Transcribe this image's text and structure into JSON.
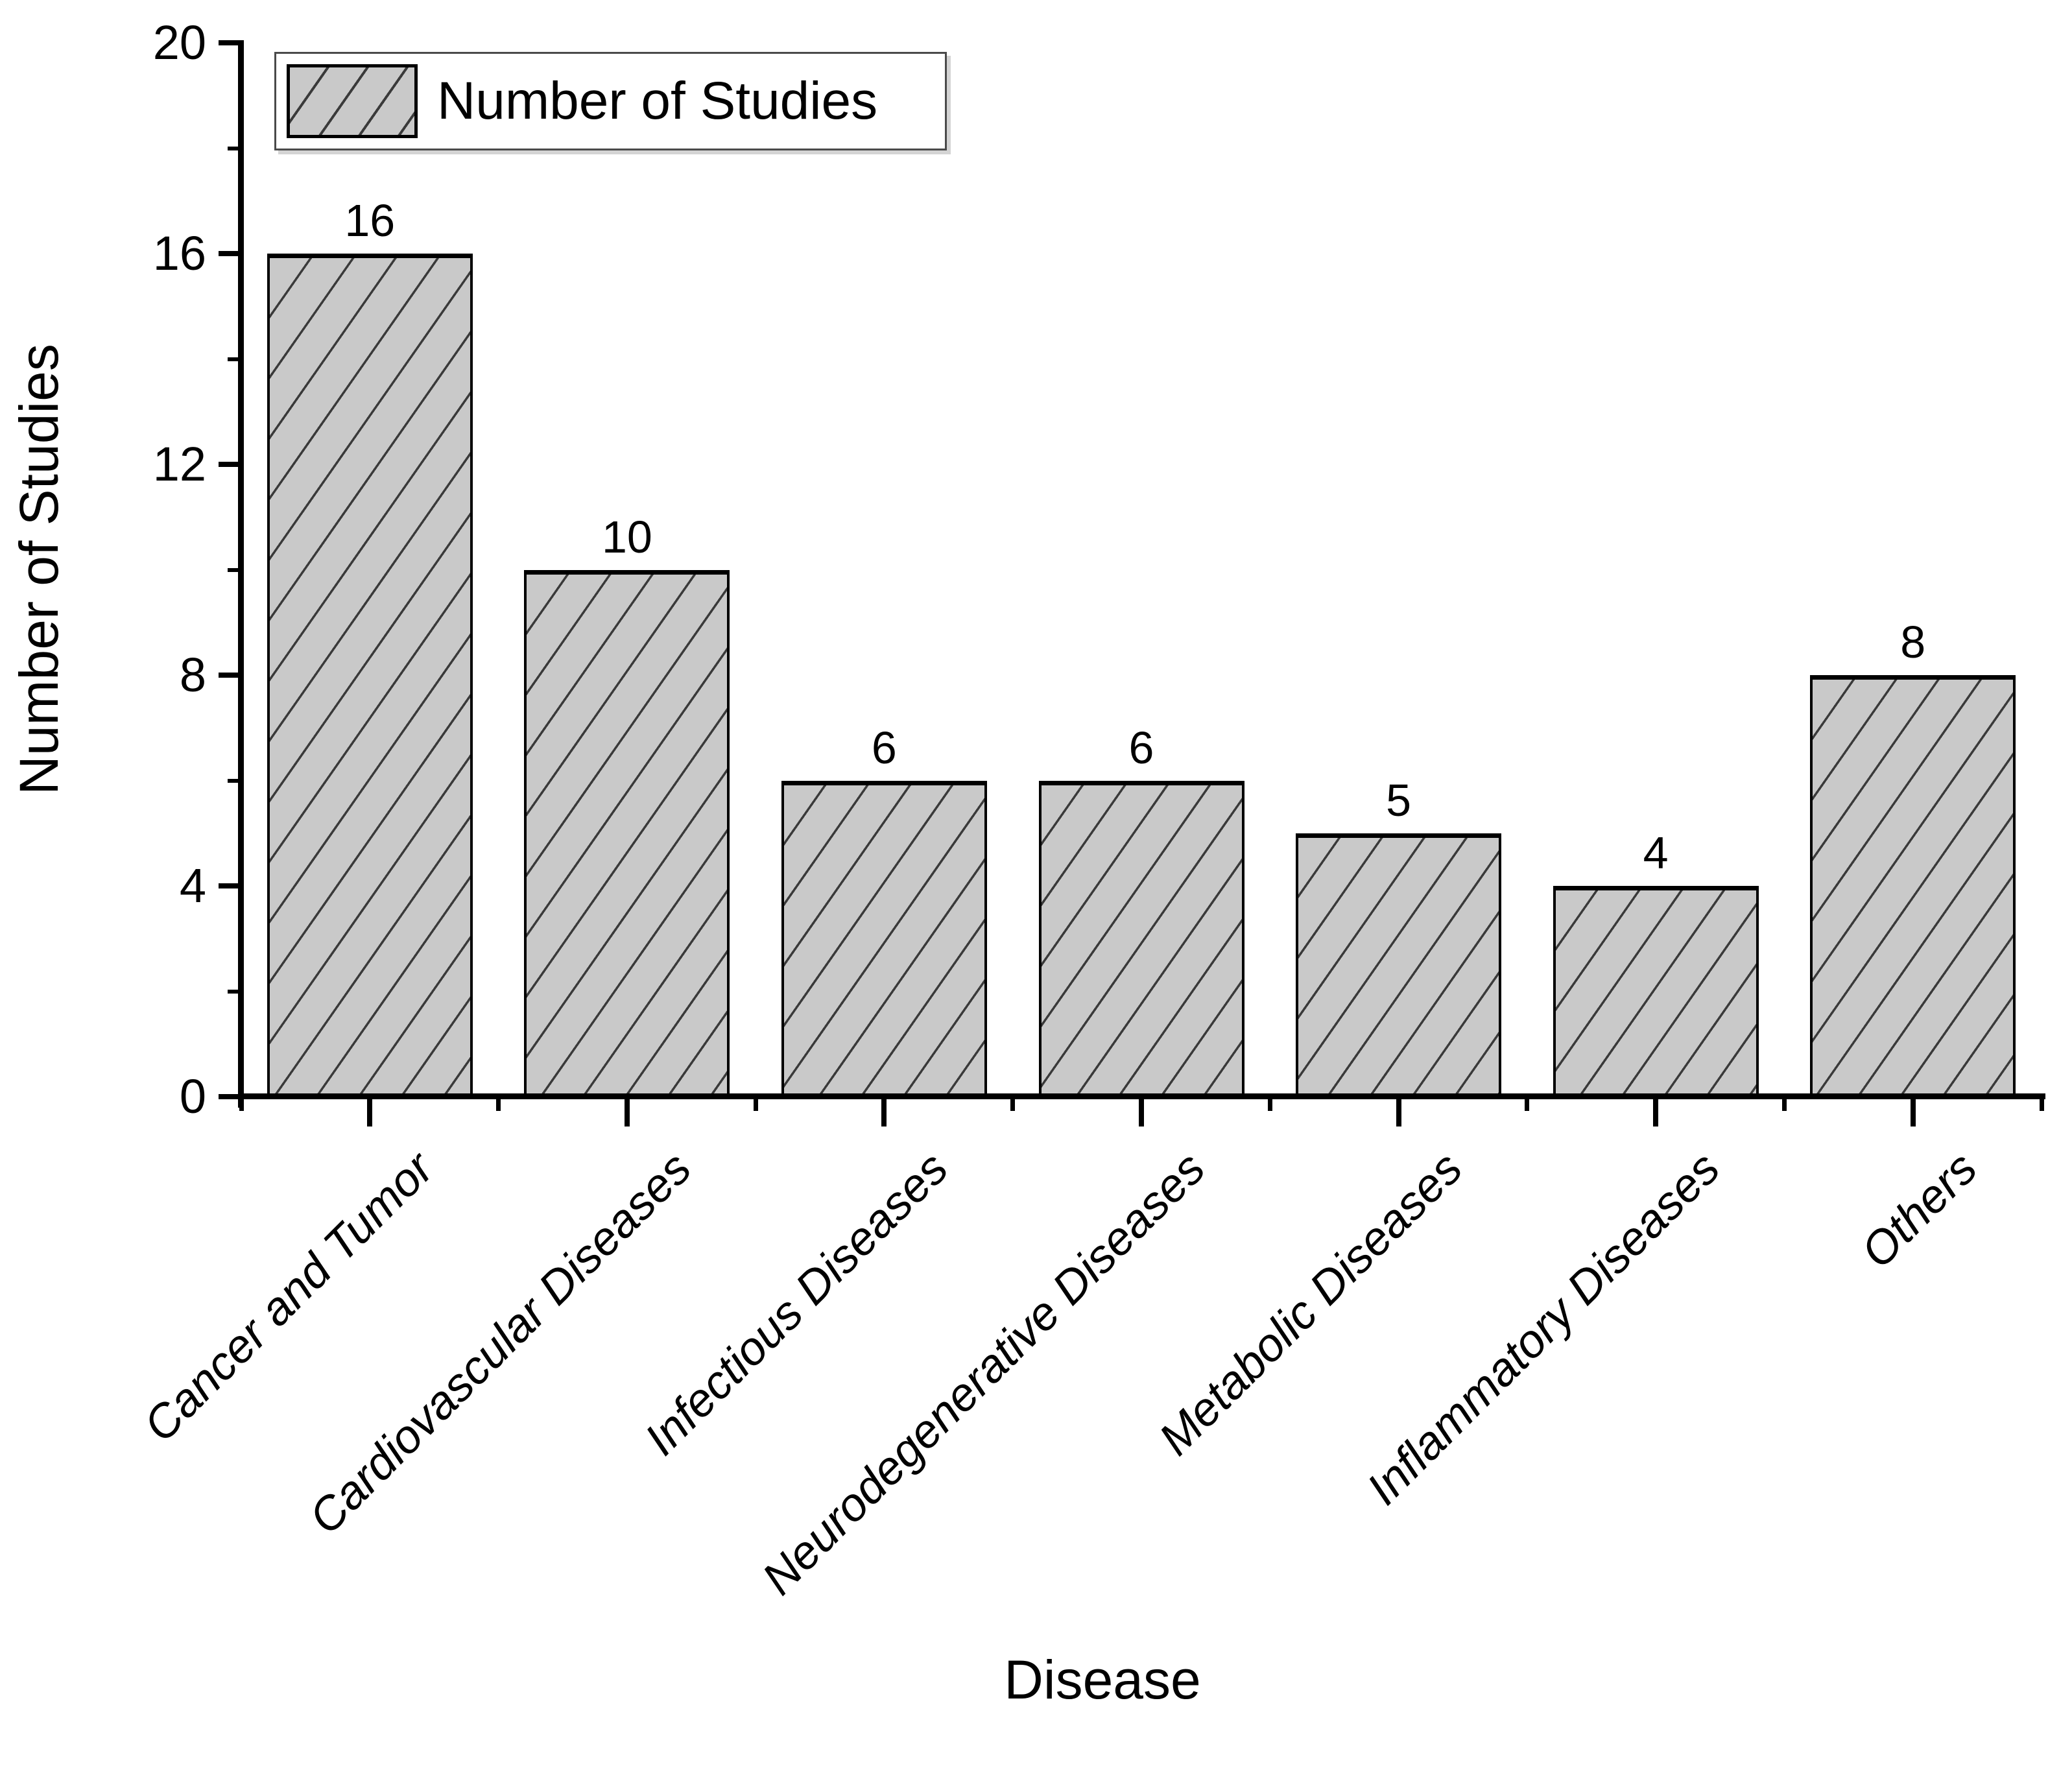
{
  "chart_data": {
    "type": "bar",
    "title": "",
    "xlabel": "Disease",
    "ylabel": "Number of Studies",
    "categories": [
      "Cancer and Tumor",
      "Cardiovascular Diseases",
      "Infectious Diseases",
      "Neurodegenerative Diseases",
      "Metabolic Diseases",
      "Inflammatory Diseases",
      "Others"
    ],
    "values": [
      16,
      10,
      6,
      6,
      5,
      4,
      8
    ],
    "bar_value_labels": [
      "16",
      "10",
      "6",
      "6",
      "5",
      "4",
      "8"
    ],
    "ylim": [
      0,
      20
    ],
    "yticks_major": [
      0,
      4,
      8,
      12,
      16,
      20
    ],
    "yticks_minor": [
      2,
      6,
      10,
      14,
      18
    ],
    "grid": false,
    "legend": {
      "label": "Number of Studies",
      "position": "top-left",
      "swatch": "hatched-gray"
    },
    "bar_style": {
      "fill": "#c9c9c9",
      "hatch": "forward-diagonal",
      "hatch_color": "#3a3a3a",
      "edge_color": "#000000"
    }
  }
}
